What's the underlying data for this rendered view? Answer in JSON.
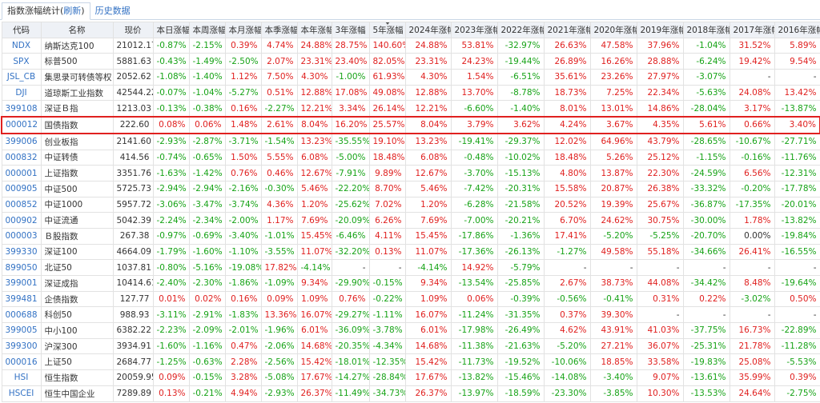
{
  "tabs": {
    "active_prefix": "指数涨幅统计(",
    "refresh": "刷新",
    "active_suffix": ")",
    "history": "历史数据"
  },
  "table": {
    "columns": [
      "代码",
      "名称",
      "现价",
      "本日涨幅",
      "本周涨幅",
      "本月涨幅",
      "本季涨幅",
      "本年涨幅",
      "3年涨幅",
      "5年涨幅",
      "2024年涨幅",
      "2023年涨幅",
      "2022年涨幅",
      "2021年涨幅",
      "2020年涨幅",
      "2019年涨幅",
      "2018年涨幅",
      "2017年涨幅",
      "2016年涨幅"
    ],
    "rows": [
      [
        "NDX",
        "纳斯达克100",
        "21012.17",
        "-0.87%",
        "-2.15%",
        "0.39%",
        "4.74%",
        "24.88%",
        "28.75%",
        "140.60%",
        "24.88%",
        "53.81%",
        "-32.97%",
        "26.63%",
        "47.58%",
        "37.96%",
        "-1.04%",
        "31.52%",
        "5.89%"
      ],
      [
        "SPX",
        "标普500",
        "5881.63",
        "-0.43%",
        "-1.49%",
        "-2.50%",
        "2.07%",
        "23.31%",
        "23.40%",
        "82.05%",
        "23.31%",
        "24.23%",
        "-19.44%",
        "26.89%",
        "16.26%",
        "28.88%",
        "-6.24%",
        "19.42%",
        "9.54%"
      ],
      [
        "JSL_CB",
        "集思录可转债等权",
        "2052.62",
        "-1.08%",
        "-1.40%",
        "1.12%",
        "7.50%",
        "4.30%",
        "-1.00%",
        "61.93%",
        "4.30%",
        "1.54%",
        "-6.51%",
        "35.61%",
        "23.26%",
        "27.97%",
        "-3.07%",
        "-",
        "-"
      ],
      [
        "DJI",
        "道琼斯工业指数",
        "42544.22",
        "-0.07%",
        "-1.04%",
        "-5.27%",
        "0.51%",
        "12.88%",
        "17.08%",
        "49.08%",
        "12.88%",
        "13.70%",
        "-8.78%",
        "18.73%",
        "7.25%",
        "22.34%",
        "-5.63%",
        "24.08%",
        "13.42%"
      ],
      [
        "399108",
        "深证Ｂ指",
        "1213.03",
        "-0.13%",
        "-0.38%",
        "0.16%",
        "-2.27%",
        "12.21%",
        "3.34%",
        "26.14%",
        "12.21%",
        "-6.60%",
        "-1.40%",
        "8.01%",
        "13.01%",
        "14.86%",
        "-28.04%",
        "3.17%",
        "-13.87%"
      ],
      [
        "000012",
        "国债指数",
        "222.60",
        "0.08%",
        "0.06%",
        "1.48%",
        "2.61%",
        "8.04%",
        "16.20%",
        "25.57%",
        "8.04%",
        "3.79%",
        "3.62%",
        "4.24%",
        "3.67%",
        "4.35%",
        "5.61%",
        "0.66%",
        "3.40%"
      ],
      [
        "399006",
        "创业板指",
        "2141.60",
        "-2.93%",
        "-2.87%",
        "-3.71%",
        "-1.54%",
        "13.23%",
        "-35.55%",
        "19.10%",
        "13.23%",
        "-19.41%",
        "-29.37%",
        "12.02%",
        "64.96%",
        "43.79%",
        "-28.65%",
        "-10.67%",
        "-27.71%"
      ],
      [
        "000832",
        "中证转债",
        "414.56",
        "-0.74%",
        "-0.65%",
        "1.50%",
        "5.55%",
        "6.08%",
        "-5.00%",
        "18.48%",
        "6.08%",
        "-0.48%",
        "-10.02%",
        "18.48%",
        "5.26%",
        "25.12%",
        "-1.15%",
        "-0.16%",
        "-11.76%"
      ],
      [
        "000001",
        "上证指数",
        "3351.76",
        "-1.63%",
        "-1.42%",
        "0.76%",
        "0.46%",
        "12.67%",
        "-7.91%",
        "9.89%",
        "12.67%",
        "-3.70%",
        "-15.13%",
        "4.80%",
        "13.87%",
        "22.30%",
        "-24.59%",
        "6.56%",
        "-12.31%"
      ],
      [
        "000905",
        "中证500",
        "5725.73",
        "-2.94%",
        "-2.94%",
        "-2.16%",
        "-0.30%",
        "5.46%",
        "-22.20%",
        "8.70%",
        "5.46%",
        "-7.42%",
        "-20.31%",
        "15.58%",
        "20.87%",
        "26.38%",
        "-33.32%",
        "-0.20%",
        "-17.78%"
      ],
      [
        "000852",
        "中证1000",
        "5957.72",
        "-3.06%",
        "-3.47%",
        "-3.74%",
        "4.36%",
        "1.20%",
        "-25.62%",
        "7.02%",
        "1.20%",
        "-6.28%",
        "-21.58%",
        "20.52%",
        "19.39%",
        "25.67%",
        "-36.87%",
        "-17.35%",
        "-20.01%"
      ],
      [
        "000902",
        "中证流通",
        "5042.39",
        "-2.24%",
        "-2.34%",
        "-2.00%",
        "1.17%",
        "7.69%",
        "-20.09%",
        "6.26%",
        "7.69%",
        "-7.00%",
        "-20.21%",
        "6.70%",
        "24.62%",
        "30.75%",
        "-30.00%",
        "1.78%",
        "-13.82%"
      ],
      [
        "000003",
        "Ｂ股指数",
        "267.38",
        "-0.97%",
        "-0.69%",
        "-3.40%",
        "-1.01%",
        "15.45%",
        "-6.46%",
        "4.11%",
        "15.45%",
        "-17.86%",
        "-1.36%",
        "17.41%",
        "-5.20%",
        "-5.25%",
        "-20.70%",
        "0.00%",
        "-19.84%"
      ],
      [
        "399330",
        "深证100",
        "4664.09",
        "-1.79%",
        "-1.60%",
        "-1.10%",
        "-3.55%",
        "11.07%",
        "-32.20%",
        "0.13%",
        "11.07%",
        "-17.36%",
        "-26.13%",
        "-1.27%",
        "49.58%",
        "55.18%",
        "-34.66%",
        "26.41%",
        "-16.55%"
      ],
      [
        "899050",
        "北证50",
        "1037.81",
        "-0.80%",
        "-5.16%",
        "-19.08%",
        "17.82%",
        "-4.14%",
        "-",
        "-",
        "-4.14%",
        "14.92%",
        "-5.79%",
        "-",
        "-",
        "-",
        "-",
        "-",
        "-"
      ],
      [
        "399001",
        "深证成指",
        "10414.61",
        "-2.40%",
        "-2.30%",
        "-1.86%",
        "-1.09%",
        "9.34%",
        "-29.90%",
        "-0.15%",
        "9.34%",
        "-13.54%",
        "-25.85%",
        "2.67%",
        "38.73%",
        "44.08%",
        "-34.42%",
        "8.48%",
        "-19.64%"
      ],
      [
        "399481",
        "企债指数",
        "127.77",
        "0.01%",
        "0.02%",
        "0.16%",
        "0.09%",
        "1.09%",
        "0.76%",
        "-0.22%",
        "1.09%",
        "0.06%",
        "-0.39%",
        "-0.56%",
        "-0.41%",
        "0.31%",
        "0.22%",
        "-3.02%",
        "0.50%"
      ],
      [
        "000688",
        "科创50",
        "988.93",
        "-3.11%",
        "-2.91%",
        "-1.83%",
        "13.36%",
        "16.07%",
        "-29.27%",
        "-1.11%",
        "16.07%",
        "-11.24%",
        "-31.35%",
        "0.37%",
        "39.30%",
        "-",
        "-",
        "-",
        "-"
      ],
      [
        "399005",
        "中小100",
        "6382.22",
        "-2.23%",
        "-2.09%",
        "-2.01%",
        "-1.96%",
        "6.01%",
        "-36.09%",
        "-3.78%",
        "6.01%",
        "-17.98%",
        "-26.49%",
        "4.62%",
        "43.91%",
        "41.03%",
        "-37.75%",
        "16.73%",
        "-22.89%"
      ],
      [
        "399300",
        "沪深300",
        "3934.91",
        "-1.60%",
        "-1.16%",
        "0.47%",
        "-2.06%",
        "14.68%",
        "-20.35%",
        "-4.34%",
        "14.68%",
        "-11.38%",
        "-21.63%",
        "-5.20%",
        "27.21%",
        "36.07%",
        "-25.31%",
        "21.78%",
        "-11.28%"
      ],
      [
        "000016",
        "上证50",
        "2684.77",
        "-1.25%",
        "-0.63%",
        "2.28%",
        "-2.56%",
        "15.42%",
        "-18.01%",
        "-12.35%",
        "15.42%",
        "-11.73%",
        "-19.52%",
        "-10.06%",
        "18.85%",
        "33.58%",
        "-19.83%",
        "25.08%",
        "-5.53%"
      ],
      [
        "HSI",
        "恒生指数",
        "20059.95",
        "0.09%",
        "-0.15%",
        "3.28%",
        "-5.08%",
        "17.67%",
        "-14.27%",
        "-28.84%",
        "17.67%",
        "-13.82%",
        "-15.46%",
        "-14.08%",
        "-3.40%",
        "9.07%",
        "-13.61%",
        "35.99%",
        "0.39%"
      ],
      [
        "HSCEI",
        "恒生中国企业",
        "7289.89",
        "0.13%",
        "-0.21%",
        "4.94%",
        "-2.93%",
        "26.37%",
        "-11.49%",
        "-34.73%",
        "26.37%",
        "-13.97%",
        "-18.59%",
        "-23.30%",
        "-3.85%",
        "10.30%",
        "-13.53%",
        "24.64%",
        "-2.75%"
      ]
    ]
  }
}
